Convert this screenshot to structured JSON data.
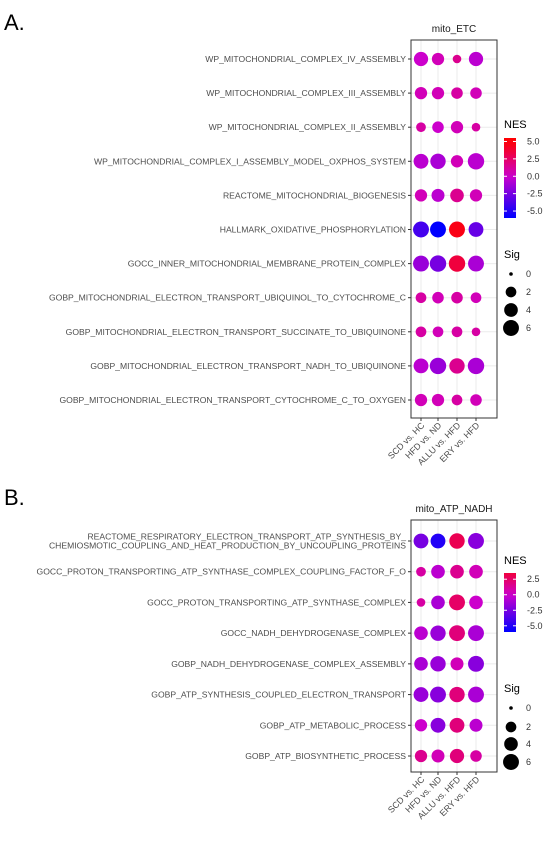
{
  "chart_data": [
    {
      "type": "scatter",
      "panel_label": "A.",
      "facet_title": "mito_ETC",
      "categories": [
        "SCD vs. HC",
        "HFD vs. ND",
        "ALLU vs. HFD",
        "ERY vs. HFD"
      ],
      "pathways": [
        "WP_MITOCHONDRIAL_COMPLEX_IV_ASSEMBLY",
        "WP_MITOCHONDRIAL_COMPLEX_III_ASSEMBLY",
        "WP_MITOCHONDRIAL_COMPLEX_II_ASSEMBLY",
        "WP_MITOCHONDRIAL_COMPLEX_I_ASSEMBLY_MODEL_OXPHOS_SYSTEM",
        "REACTOME_MITOCHONDRIAL_BIOGENESIS",
        "HALLMARK_OXIDATIVE_PHOSPHORYLATION",
        "GOCC_INNER_MITOCHONDRIAL_MEMBRANE_PROTEIN_COMPLEX",
        "GOBP_MITOCHONDRIAL_ELECTRON_TRANSPORT_UBIQUINOL_TO_CYTOCHROME_C",
        "GOBP_MITOCHONDRIAL_ELECTRON_TRANSPORT_SUCCINATE_TO_UBIQUINONE",
        "GOBP_MITOCHONDRIAL_ELECTRON_TRANSPORT_NADH_TO_UBIQUINONE",
        "GOBP_MITOCHONDRIAL_ELECTRON_TRANSPORT_CYTOCHROME_C_TO_OXYGEN"
      ],
      "nes": [
        [
          0.0,
          0.5,
          1.5,
          -0.5
        ],
        [
          0.5,
          0.5,
          1.0,
          0.5
        ],
        [
          1.0,
          0.0,
          0.5,
          1.0
        ],
        [
          -0.5,
          -1.0,
          0.5,
          -0.5
        ],
        [
          0.5,
          -0.5,
          1.5,
          0.5
        ],
        [
          -4.0,
          -6.0,
          4.5,
          -3.0
        ],
        [
          -1.5,
          -2.5,
          3.5,
          -1.0
        ],
        [
          1.0,
          0.5,
          1.0,
          0.5
        ],
        [
          1.0,
          0.5,
          1.0,
          1.0
        ],
        [
          -0.5,
          -1.5,
          1.5,
          -1.0
        ],
        [
          0.5,
          0.5,
          1.0,
          0.5
        ]
      ],
      "sig": [
        [
          4.5,
          3.0,
          1.0,
          4.5
        ],
        [
          3.0,
          3.0,
          2.5,
          2.5
        ],
        [
          1.5,
          2.5,
          3.0,
          1.0
        ],
        [
          5.0,
          5.5,
          3.0,
          6.5
        ],
        [
          3.0,
          3.5,
          4.0,
          3.0
        ],
        [
          6.0,
          6.0,
          6.0,
          5.0
        ],
        [
          6.0,
          6.5,
          6.5,
          6.0
        ],
        [
          2.0,
          2.5,
          2.5,
          2.0
        ],
        [
          2.0,
          2.0,
          2.0,
          1.0
        ],
        [
          5.0,
          6.5,
          5.5,
          6.5
        ],
        [
          3.0,
          3.0,
          2.0,
          2.5
        ]
      ],
      "nes_legend": {
        "title": "NES",
        "ticks": [
          "5.0",
          "2.5",
          "0.0",
          "-2.5",
          "-5.0"
        ],
        "range": [
          -6.0,
          5.5
        ]
      },
      "sig_legend": {
        "title": "Sig",
        "ticks": [
          "0",
          "2",
          "4",
          "6"
        ]
      },
      "colors": {
        "high": "#ff0000",
        "mid": "#cc00cc",
        "low": "#0000ff"
      }
    },
    {
      "type": "scatter",
      "panel_label": "B.",
      "facet_title": "mito_ATP_NADH",
      "categories": [
        "SCD vs. HC",
        "HFD vs. ND",
        "ALLU vs. HFD",
        "ERY vs. HFD"
      ],
      "pathways": [
        "REACTOME_RESPIRATORY_ELECTRON_TRANSPORT_ATP_SYNTHESIS_BY_\nCHEMIOSMOTIC_COUPLING_AND_HEAT_PRODUCTION_BY_UNCOUPLING_PROTEINS",
        "GOCC_PROTON_TRANSPORTING_ATP_SYNTHASE_COMPLEX_COUPLING_FACTOR_F_O",
        "GOCC_PROTON_TRANSPORTING_ATP_SYNTHASE_COMPLEX",
        "GOCC_NADH_DEHYDROGENASE_COMPLEX",
        "GOBP_NADH_DEHYDROGENASE_COMPLEX_ASSEMBLY",
        "GOBP_ATP_SYNTHESIS_COUPLED_ELECTRON_TRANSPORT",
        "GOBP_ATP_METABOLIC_PROCESS",
        "GOBP_ATP_BIOSYNTHETIC_PROCESS"
      ],
      "nes": [
        [
          -2.5,
          -5.0,
          3.0,
          -2.0
        ],
        [
          1.0,
          -0.5,
          1.5,
          0.5
        ],
        [
          1.0,
          -1.0,
          2.5,
          0.0
        ],
        [
          -0.5,
          -1.5,
          2.0,
          -1.0
        ],
        [
          -1.0,
          -1.5,
          0.5,
          -2.0
        ],
        [
          -1.5,
          -2.0,
          2.0,
          -1.0
        ],
        [
          0.0,
          -2.0,
          2.0,
          -0.5
        ],
        [
          1.5,
          0.5,
          2.0,
          1.0
        ]
      ],
      "sig": [
        [
          5.0,
          5.0,
          5.5,
          6.0
        ],
        [
          1.5,
          4.0,
          4.0,
          4.0
        ],
        [
          1.0,
          4.0,
          6.0,
          4.0
        ],
        [
          4.0,
          5.5,
          6.0,
          6.0
        ],
        [
          4.0,
          5.5,
          3.5,
          6.0
        ],
        [
          5.0,
          6.0,
          5.5,
          6.0
        ],
        [
          3.0,
          5.0,
          5.0,
          3.5
        ],
        [
          3.0,
          3.5,
          4.5,
          2.5
        ]
      ],
      "nes_legend": {
        "title": "NES",
        "ticks": [
          "2.5",
          "0.0",
          "-2.5",
          "-5.0"
        ],
        "range": [
          -6.0,
          3.5
        ]
      },
      "sig_legend": {
        "title": "Sig",
        "ticks": [
          "0",
          "2",
          "4",
          "6"
        ]
      },
      "colors": {
        "high": "#ff0000",
        "mid": "#cc00cc",
        "low": "#0000ff"
      }
    }
  ]
}
